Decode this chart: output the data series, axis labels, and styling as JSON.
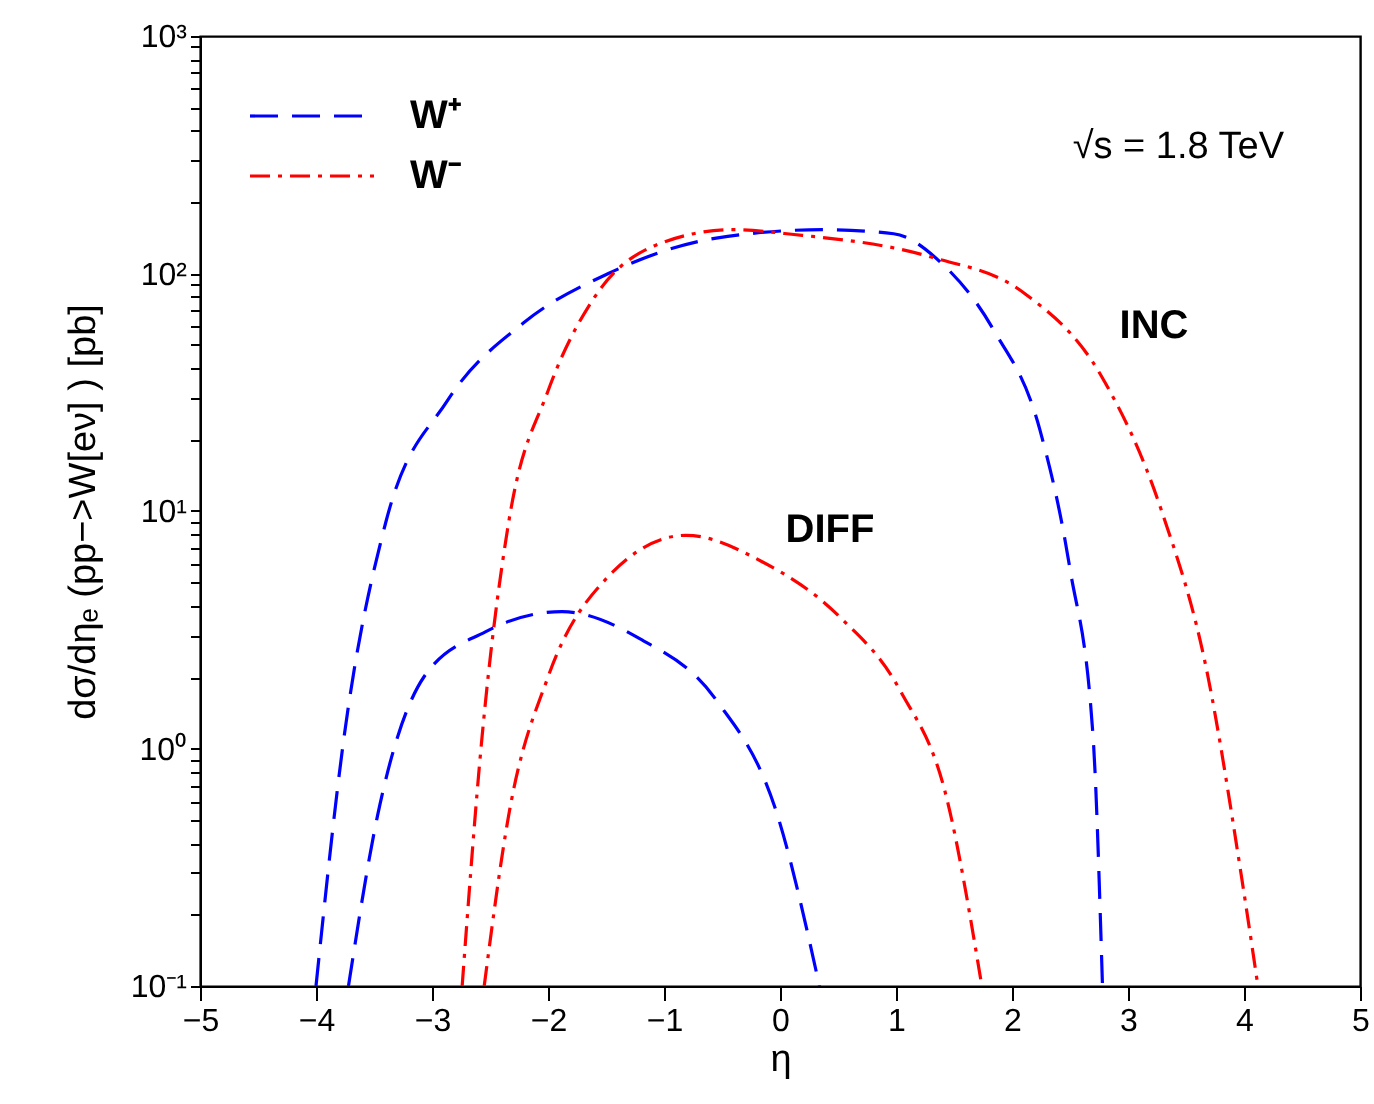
{
  "chart_data": {
    "type": "line",
    "xlabel": "η",
    "ylabel": "dσ/dηₑ (pp−>W[eν] )  [pb]",
    "log": "y",
    "xlim": [
      -5,
      5
    ],
    "ylim": [
      0.1,
      1000
    ],
    "xticks": [
      {
        "value": -5,
        "label": "−5"
      },
      {
        "value": -4,
        "label": "−4"
      },
      {
        "value": -3,
        "label": "−3"
      },
      {
        "value": -2,
        "label": "−2"
      },
      {
        "value": -1,
        "label": "−1"
      },
      0,
      1,
      2,
      3,
      4,
      5
    ],
    "yticks": [
      {
        "value": 0.1,
        "label": "10⁻¹"
      },
      {
        "value": 0.2,
        "label": null
      },
      {
        "value": 0.3,
        "label": null
      },
      {
        "value": 0.4,
        "label": null
      },
      {
        "value": 0.5,
        "label": null
      },
      {
        "value": 0.6,
        "label": null
      },
      {
        "value": 0.7,
        "label": null
      },
      {
        "value": 0.8,
        "label": null
      },
      {
        "value": 0.9,
        "label": null
      },
      {
        "value": 1,
        "label": "10⁰"
      },
      {
        "value": 2,
        "label": null
      },
      {
        "value": 3,
        "label": null
      },
      {
        "value": 4,
        "label": null
      },
      {
        "value": 5,
        "label": null
      },
      {
        "value": 6,
        "label": null
      },
      {
        "value": 7,
        "label": null
      },
      {
        "value": 8,
        "label": null
      },
      {
        "value": 9,
        "label": null
      },
      {
        "value": 10,
        "label": "10¹"
      },
      {
        "value": 20,
        "label": null
      },
      {
        "value": 30,
        "label": null
      },
      {
        "value": 40,
        "label": null
      },
      {
        "value": 50,
        "label": null
      },
      {
        "value": 60,
        "label": null
      },
      {
        "value": 70,
        "label": null
      },
      {
        "value": 80,
        "label": null
      },
      {
        "value": 90,
        "label": null
      },
      {
        "value": 100,
        "label": "10²"
      },
      {
        "value": 200,
        "label": null
      },
      {
        "value": 300,
        "label": null
      },
      {
        "value": 400,
        "label": null
      },
      {
        "value": 500,
        "label": null
      },
      {
        "value": 600,
        "label": null
      },
      {
        "value": 700,
        "label": null
      },
      {
        "value": 800,
        "label": null
      },
      {
        "value": 900,
        "label": null
      },
      {
        "value": 1000,
        "label": "10³"
      }
    ],
    "grid": false,
    "legend": "top left",
    "marker": "none",
    "series": [
      {
        "name": "W⁺",
        "color": "#0000ff",
        "line_style": "dashed",
        "x": [
          -4.0,
          -3.76,
          -3.4,
          -2.87,
          -2.21,
          -1.48,
          -0.55,
          0.38,
          0.98,
          1.38,
          1.84,
          2.24,
          2.5,
          2.7,
          2.78
        ],
        "values": [
          0.1,
          1.1,
          8.9,
          29,
          62,
          100,
          141,
          153,
          147,
          112,
          58,
          22,
          5.7,
          1.1,
          0.1
        ]
      },
      {
        "name": "W⁻",
        "color": "#ff0000",
        "line_style": "dashdot",
        "x": [
          -2.74,
          -2.57,
          -2.34,
          -2.0,
          -1.61,
          -1.08,
          -0.41,
          0.12,
          1.31,
          2.1,
          2.77,
          3.29,
          3.69,
          3.96,
          4.12
        ],
        "values": [
          0.1,
          1.1,
          8.9,
          32,
          78,
          131,
          153,
          146,
          117,
          83,
          37,
          10,
          2.0,
          0.33,
          0.1
        ]
      },
      {
        "color": "#0000ff",
        "line_style": "dashed",
        "x": [
          -3.72,
          -3.47,
          -3.07,
          -2.54,
          -1.88,
          -1.21,
          -0.55,
          -0.02,
          0.34
        ],
        "values": [
          0.1,
          0.52,
          2.0,
          3.1,
          3.77,
          2.9,
          1.6,
          0.52,
          0.1
        ]
      },
      {
        "color": "#ff0000",
        "line_style": "dashdot",
        "x": [
          -2.55,
          -2.34,
          -2.0,
          -1.48,
          -0.81,
          -0.15,
          0.51,
          1.04,
          1.44,
          1.74
        ],
        "values": [
          0.1,
          0.52,
          2.0,
          5.3,
          7.9,
          6.1,
          3.6,
          1.74,
          0.61,
          0.1
        ]
      }
    ],
    "annotations": [
      "INC",
      "DIFF",
      "√s = 1.8 TeV"
    ]
  }
}
